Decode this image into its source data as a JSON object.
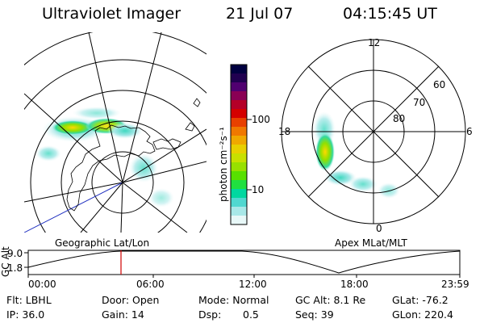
{
  "header": {
    "instrument": "Ultraviolet Imager",
    "date": "21 Jul 07",
    "time": "04:15:45 UT"
  },
  "colorbar": {
    "unit": "photon cm⁻²s⁻¹",
    "ticks": [
      "100",
      "10"
    ],
    "colors": [
      "#000040",
      "#200050",
      "#500070",
      "#8a0055",
      "#b40028",
      "#d40000",
      "#e84000",
      "#f07800",
      "#f0a800",
      "#e8d000",
      "#c8e000",
      "#98e000",
      "#58e000",
      "#20e040",
      "#00d8a0",
      "#50d8d0",
      "#a8e8e8",
      "#e8f8f8"
    ]
  },
  "left_map": {
    "label": "Geographic Lat/Lon"
  },
  "right_map": {
    "label": "Apex MLat/MLT",
    "mlt_labels": [
      "12",
      "18",
      "6",
      "0"
    ],
    "lat_labels": [
      "60",
      "70",
      "80"
    ]
  },
  "altitude_plot": {
    "ylabel": "GC Alt",
    "yticks": [
      "9.0",
      "1.8"
    ],
    "xticks": [
      "00:00",
      "06:00",
      "12:00",
      "18:00",
      "23:59"
    ]
  },
  "info": {
    "flt": "Flt: LBHL",
    "ip": "IP: 36.0",
    "door": "Door: Open",
    "gain": "Gain: 14",
    "mode": "Mode: Normal",
    "dsp_label": "Dsp:",
    "dsp_value": "0.5",
    "gc_alt": "GC Alt: 8.1 Re",
    "seq": "Seq: 39",
    "glat": "GLat: -76.2",
    "glon": "GLon: 220.4"
  }
}
